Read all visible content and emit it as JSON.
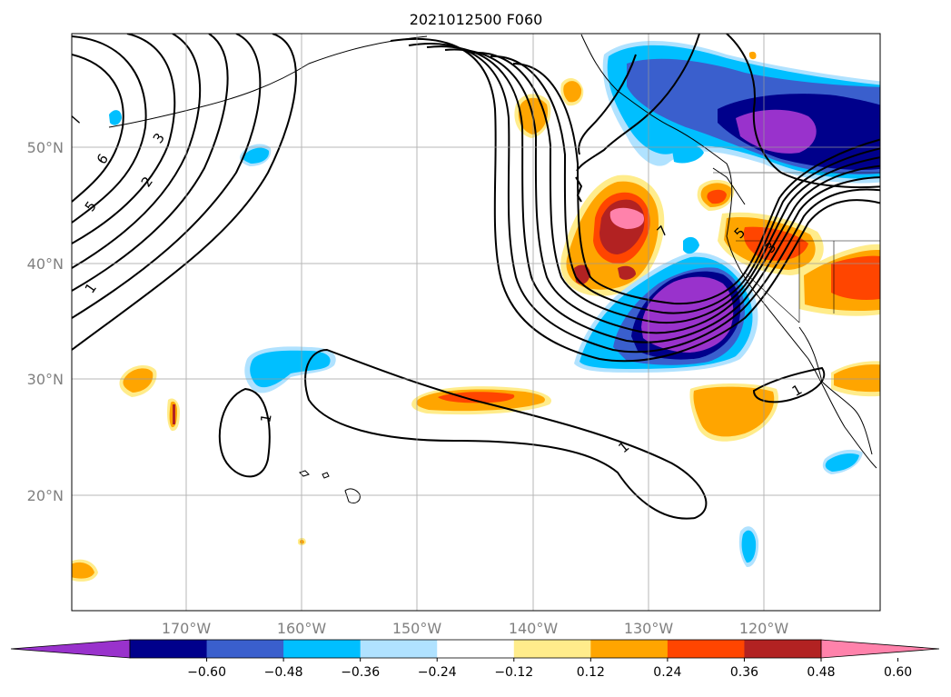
{
  "title": "2021012500 F060",
  "map": {
    "lon_labels": [
      "170°W",
      "160°W",
      "150°W",
      "140°W",
      "130°W",
      "120°W"
    ],
    "lat_labels": [
      "50°N",
      "40°N",
      "30°N",
      "20°N"
    ],
    "grid": true,
    "region": "North Pacific / West coast of North America",
    "contour_labels": [
      "1",
      "2",
      "3",
      "5",
      "6",
      "7",
      "1",
      "1",
      "1",
      "3",
      "5",
      "7",
      "1"
    ]
  },
  "colorbar": {
    "tick_labels": [
      "−0.60",
      "−0.48",
      "−0.36",
      "−0.24",
      "−0.12",
      "0.12",
      "0.24",
      "0.36",
      "0.48",
      "0.60"
    ],
    "colors": [
      "#9932CC",
      "#00008B",
      "#3A5FCD",
      "#00BFFF",
      "#B0E2FF",
      "#FFFFFF",
      "#FFEC8B",
      "#FFA500",
      "#FF4500",
      "#B22222",
      "#FF82AB"
    ],
    "extend": "both"
  },
  "colors": {
    "purple": "#9932CC",
    "navy": "#00008B",
    "royal": "#3A5FCD",
    "sky": "#00BFFF",
    "lightsky": "#B0E2FF",
    "yellow": "#FFEC8B",
    "orange": "#FFA500",
    "redorange": "#FF4500",
    "firebrick": "#B22222",
    "pink": "#FF82AB"
  }
}
